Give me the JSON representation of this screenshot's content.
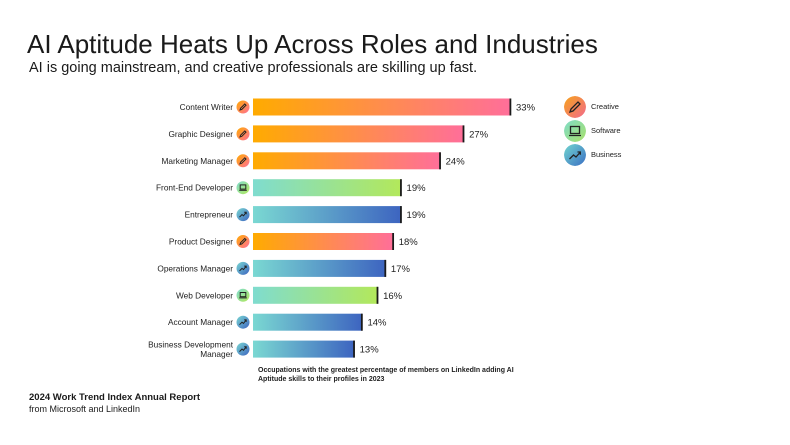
{
  "header": {
    "title": "AI Aptitude Heats Up Across Roles and Industries",
    "subtitle": "AI is going mainstream, and creative professionals are skilling up fast."
  },
  "legend": {
    "items": [
      {
        "label": "Creative",
        "icon": "pencil-icon",
        "gradient": [
          "#f6a21b",
          "#f26a8d"
        ]
      },
      {
        "label": "Software",
        "icon": "laptop-icon",
        "gradient": [
          "#7fdcc8",
          "#a8e06a"
        ]
      },
      {
        "label": "Business",
        "icon": "trend-arrow-icon",
        "gradient": [
          "#72d6cf",
          "#3a6fc4"
        ]
      }
    ]
  },
  "footer": {
    "note": "Occupations with the greatest percentage of members on LinkedIn adding AI Aptitude skills to their profiles in 2023",
    "report_title": "2024 Work Trend Index Annual Report",
    "report_sub": "from Microsoft and LinkedIn"
  },
  "colors": {
    "Creative": {
      "start": "#ffab00",
      "end": "#ff6e9a"
    },
    "Software": {
      "start": "#7fdccf",
      "end": "#b3e85a"
    },
    "Business": {
      "start": "#7ad8d2",
      "end": "#3d64c0"
    }
  },
  "chart_data": {
    "type": "bar",
    "orientation": "horizontal",
    "categories": [
      "Content Writer",
      "Graphic Designer",
      "Marketing Manager",
      "Front-End Developer",
      "Entrepreneur",
      "Product Designer",
      "Operations Manager",
      "Web Developer",
      "Account Manager",
      "Business Development Manager"
    ],
    "values": [
      33,
      27,
      24,
      19,
      19,
      18,
      17,
      16,
      14,
      13
    ],
    "value_labels": [
      "33%",
      "27%",
      "24%",
      "19%",
      "19%",
      "18%",
      "17%",
      "16%",
      "14%",
      "13%"
    ],
    "groups": [
      "Creative",
      "Creative",
      "Creative",
      "Software",
      "Business",
      "Creative",
      "Business",
      "Software",
      "Business",
      "Business"
    ],
    "unit": "%",
    "grid": false,
    "legend_position": "right"
  }
}
